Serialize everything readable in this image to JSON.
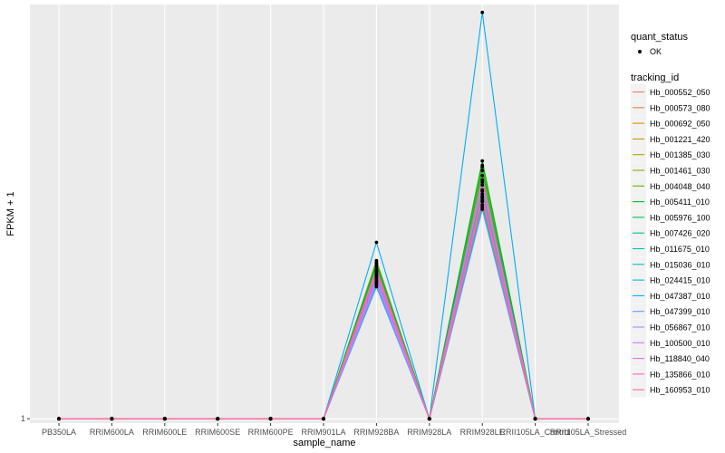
{
  "chart_data": {
    "type": "line",
    "title": "",
    "xlabel": "sample_name",
    "ylabel": "FPKM + 1",
    "y_scale": "log10",
    "y_tick_labels": [
      "1"
    ],
    "categories": [
      "PB350LA",
      "RRIM600LA",
      "RRIM600LE",
      "RRIM600SE",
      "RRIM600PE",
      "RRIM901LA",
      "RRIM928BA",
      "RRIM928LA",
      "RRIM928LE",
      "RRII105LA_Control",
      "RRII105LA_Stressed"
    ],
    "point_legend": {
      "title": "quant_status",
      "entries": [
        "OK"
      ]
    },
    "color_legend_title": "tracking_id",
    "series": [
      {
        "name": "Hb_000552_050",
        "color": "#F8766D",
        "values": [
          1,
          1,
          1,
          1,
          1,
          1,
          26,
          1,
          172,
          1,
          1
        ]
      },
      {
        "name": "Hb_000573_080",
        "color": "#EC8239",
        "values": [
          1,
          1,
          1,
          1,
          1,
          1,
          30,
          1,
          213,
          1,
          1
        ]
      },
      {
        "name": "Hb_000692_050",
        "color": "#DB8E00",
        "values": [
          1,
          1,
          1,
          1,
          1,
          1,
          33,
          1,
          247,
          1,
          1
        ]
      },
      {
        "name": "Hb_001221_420",
        "color": "#C79800",
        "values": [
          1,
          1,
          1,
          1,
          1,
          1,
          36,
          1,
          297,
          1,
          1
        ]
      },
      {
        "name": "Hb_001385_030",
        "color": "#AEA200",
        "values": [
          1,
          1,
          1,
          1,
          1,
          1,
          40,
          1,
          349,
          1,
          1
        ]
      },
      {
        "name": "Hb_001461_030",
        "color": "#8FAA00",
        "values": [
          1,
          1,
          1,
          1,
          1,
          1,
          43,
          1,
          432,
          1,
          1
        ]
      },
      {
        "name": "Hb_004048_040",
        "color": "#64B200",
        "values": [
          1,
          1,
          1,
          1,
          1,
          1,
          45,
          1,
          447,
          1,
          1
        ]
      },
      {
        "name": "Hb_005411_010",
        "color": "#00B81B",
        "values": [
          1,
          1,
          1,
          1,
          1,
          1,
          42,
          1,
          497,
          1,
          1
        ]
      },
      {
        "name": "Hb_005976_100",
        "color": "#00BD5C",
        "values": [
          1,
          1,
          1,
          1,
          1,
          1,
          39,
          1,
          395,
          1,
          1
        ]
      },
      {
        "name": "Hb_007426_020",
        "color": "#00C085",
        "values": [
          1,
          1,
          1,
          1,
          1,
          1,
          35,
          1,
          241,
          1,
          1
        ]
      },
      {
        "name": "Hb_011675_010",
        "color": "#00C1A7",
        "values": [
          1,
          1,
          1,
          1,
          1,
          1,
          31,
          1,
          186,
          1,
          1
        ]
      },
      {
        "name": "Hb_015036_010",
        "color": "#00BFC4",
        "values": [
          1,
          1,
          1,
          1,
          1,
          1,
          28,
          1,
          163,
          1,
          1
        ]
      },
      {
        "name": "Hb_024415_010",
        "color": "#00B9E0",
        "values": [
          1,
          1,
          1,
          1,
          1,
          1,
          24,
          1,
          155,
          1,
          1
        ]
      },
      {
        "name": "Hb_047387_010",
        "color": "#00ADFA",
        "values": [
          1,
          1,
          1,
          1,
          1,
          1,
          70,
          1,
          17800,
          1,
          1
        ]
      },
      {
        "name": "Hb_047399_010",
        "color": "#619CFF",
        "values": [
          1,
          1,
          1,
          1,
          1,
          1,
          25,
          1,
          157,
          1,
          1
        ]
      },
      {
        "name": "Hb_056867_010",
        "color": "#A58AFF",
        "values": [
          1,
          1,
          1,
          1,
          1,
          1,
          29,
          1,
          278,
          1,
          1
        ]
      },
      {
        "name": "Hb_100500_010",
        "color": "#D376FF",
        "values": [
          1,
          1,
          1,
          1,
          1,
          1,
          27,
          1,
          206,
          1,
          1
        ]
      },
      {
        "name": "Hb_118840_040",
        "color": "#F066EA",
        "values": [
          1,
          1,
          1,
          1,
          1,
          1,
          32,
          1,
          315,
          1,
          1
        ]
      },
      {
        "name": "Hb_135866_010",
        "color": "#FF62BC",
        "values": [
          1,
          1,
          1,
          1,
          1,
          1,
          34,
          1,
          225,
          1,
          1
        ]
      },
      {
        "name": "Hb_160953_010",
        "color": "#FF6C91",
        "values": [
          1,
          1,
          1,
          1,
          1,
          1,
          37,
          1,
          194,
          1,
          1
        ]
      }
    ]
  }
}
